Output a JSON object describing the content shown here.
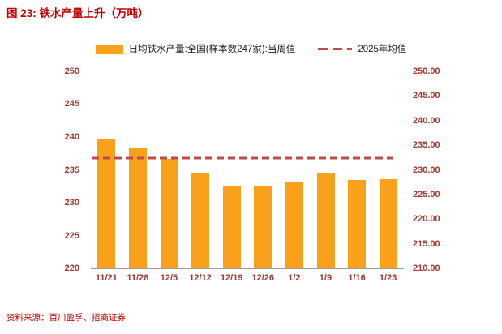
{
  "title": "图 23: 铁水产量上升（万吨）",
  "source": "资料来源：百川盈孚、招商证券",
  "legend": {
    "bar_label": "日均铁水产量:全国(样本数247家):当周值",
    "line_label": "2025年均值"
  },
  "colors": {
    "bar": "#F9A11B",
    "line": "#BE4B48",
    "title": "#C00000",
    "axis_text": "#9E3A32",
    "source": "#C00000"
  },
  "chart_data": {
    "type": "bar",
    "title": "铁水产量上升（万吨）",
    "xlabel": "",
    "ylabel": "",
    "grid": false,
    "legend_position": "top",
    "categories": [
      "11/21",
      "11/28",
      "12/5",
      "12/12",
      "12/19",
      "12/26",
      "1/2",
      "1/9",
      "1/16",
      "1/23"
    ],
    "series": [
      {
        "name": "日均铁水产量:全国(样本数247家):当周值",
        "type": "bar",
        "axis": "left",
        "values": [
          239.7,
          238.4,
          236.7,
          234.4,
          232.5,
          232.5,
          233.1,
          234.6,
          233.5,
          233.6
        ]
      },
      {
        "name": "2025年均值",
        "type": "dashed-line",
        "axis": "left",
        "value": 236.8
      }
    ],
    "left_axis": {
      "min": 220,
      "max": 250,
      "ticks": [
        "250",
        "245",
        "240",
        "235",
        "230",
        "225",
        "220"
      ]
    },
    "right_axis": {
      "min": 210,
      "max": 250,
      "ticks": [
        "250.00",
        "245.00",
        "240.00",
        "235.00",
        "230.00",
        "225.00",
        "220.00",
        "215.00",
        "210.00"
      ]
    }
  }
}
